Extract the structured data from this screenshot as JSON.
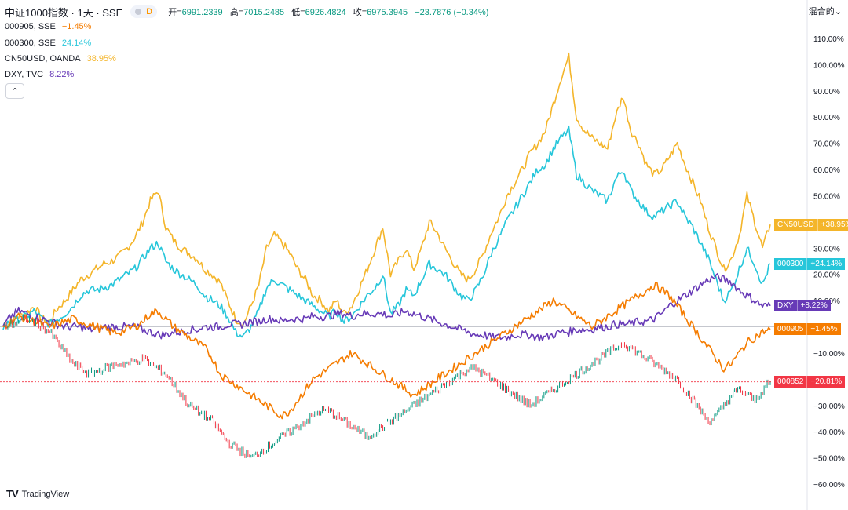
{
  "header": {
    "title": "中证1000指数 · 1天 · SSE",
    "badge": "D",
    "open_label": "开=",
    "open": "6991.2339",
    "high_label": "高=",
    "high": "7015.2485",
    "low_label": "低=",
    "low": "6926.4824",
    "close_label": "收=",
    "close": "6975.3945",
    "change": "−23.7876 (−0.34%)"
  },
  "legend": [
    {
      "symbol": "000905, SSE",
      "value": "−1.45%",
      "color": "#f57c00"
    },
    {
      "symbol": "000300, SSE",
      "value": "24.14%",
      "color": "#26c6da"
    },
    {
      "symbol": "CN50USD, OANDA",
      "value": "38.95%",
      "color": "#f4b52a"
    },
    {
      "symbol": "DXY, TVC",
      "value": "8.22%",
      "color": "#673ab7"
    }
  ],
  "collapse_icon": "chevron-up-icon",
  "scale_mode": "混合的",
  "branding": "TradingView",
  "colors": {
    "main_up": "#089981",
    "main_down": "#f23645",
    "csi500": "#f57c00",
    "csi300": "#26c6da",
    "cn50": "#f4b52a",
    "dxy": "#673ab7"
  },
  "chart_data": {
    "type": "line",
    "y_unit": "%",
    "ylim": [
      -62,
      115
    ],
    "y_ticks": [
      "110.00%",
      "100.00%",
      "90.00%",
      "80.00%",
      "70.00%",
      "60.00%",
      "50.00%",
      "40.00%",
      "30.00%",
      "20.00%",
      "10.00%",
      "0.00%",
      "−10.00%",
      "−30.00%",
      "−40.00%",
      "−50.00%",
      "−60.00%"
    ],
    "y_tick_values": [
      110,
      100,
      90,
      80,
      70,
      60,
      50,
      40,
      30,
      20,
      10,
      0,
      -10,
      -30,
      -40,
      -50,
      -60
    ],
    "x_count": 100,
    "series": [
      {
        "name": "CN50USD",
        "label": "CN50USD",
        "last": "+38.95%",
        "color": "#f4b52a",
        "values": [
          0,
          2,
          4,
          5,
          8,
          3,
          2,
          7,
          10,
          14,
          18,
          20,
          22,
          24,
          25,
          27,
          30,
          34,
          40,
          48,
          52,
          38,
          33,
          30,
          28,
          26,
          22,
          20,
          17,
          10,
          3,
          1,
          8,
          16,
          30,
          35,
          32,
          28,
          22,
          18,
          12,
          10,
          6,
          10,
          5,
          8,
          15,
          22,
          30,
          38,
          20,
          25,
          30,
          22,
          30,
          40,
          36,
          30,
          25,
          20,
          18,
          22,
          28,
          36,
          42,
          50,
          55,
          60,
          66,
          70,
          75,
          85,
          95,
          103,
          80,
          75,
          72,
          70,
          68,
          80,
          88,
          75,
          70,
          62,
          58,
          60,
          65,
          70,
          62,
          55,
          48,
          38,
          30,
          22,
          26,
          35,
          50,
          40,
          30,
          39
        ]
      },
      {
        "name": "000300",
        "label": "000300",
        "last": "+24.14%",
        "color": "#26c6da",
        "values": [
          0,
          2,
          3,
          4,
          6,
          3,
          1,
          3,
          5,
          8,
          12,
          14,
          14,
          15,
          16,
          18,
          20,
          22,
          26,
          30,
          32,
          25,
          22,
          20,
          18,
          16,
          12,
          10,
          8,
          4,
          -2,
          -4,
          0,
          6,
          15,
          18,
          16,
          14,
          12,
          10,
          8,
          6,
          4,
          6,
          2,
          4,
          8,
          12,
          15,
          20,
          5,
          8,
          14,
          12,
          18,
          24,
          22,
          20,
          16,
          12,
          10,
          14,
          20,
          28,
          34,
          40,
          45,
          50,
          55,
          60,
          62,
          68,
          72,
          75,
          58,
          55,
          52,
          50,
          48,
          56,
          60,
          52,
          48,
          44,
          42,
          44,
          46,
          48,
          42,
          38,
          32,
          26,
          18,
          10,
          14,
          22,
          30,
          24,
          16,
          24
        ]
      },
      {
        "name": "DXY",
        "label": "DXY",
        "last": "+8.22%",
        "color": "#673ab7",
        "values": [
          0,
          4,
          6,
          5,
          4,
          3,
          2,
          1,
          0,
          0,
          0,
          -1,
          -1,
          0,
          0,
          0,
          0,
          0,
          -1,
          -2,
          -3,
          -3,
          -2,
          -2,
          -1,
          -1,
          0,
          0,
          0,
          1,
          1,
          1,
          2,
          2,
          3,
          3,
          2,
          3,
          3,
          3,
          4,
          4,
          4,
          5,
          5,
          4,
          5,
          5,
          5,
          5,
          4,
          5,
          6,
          5,
          4,
          3,
          2,
          1,
          0,
          -1,
          -2,
          -3,
          -3,
          -4,
          -4,
          -4,
          -3,
          -3,
          -3,
          -4,
          -4,
          -3,
          -2,
          -2,
          -1,
          -1,
          -1,
          0,
          0,
          1,
          1,
          1,
          2,
          2,
          3,
          5,
          8,
          10,
          12,
          14,
          16,
          18,
          19,
          18,
          17,
          14,
          12,
          10,
          8,
          8
        ]
      },
      {
        "name": "000905",
        "label": "000905",
        "last": "−1.45%",
        "color": "#f57c00",
        "values": [
          0,
          2,
          4,
          3,
          2,
          1,
          0,
          1,
          2,
          3,
          2,
          1,
          0,
          -1,
          -2,
          -2,
          -1,
          0,
          2,
          5,
          6,
          3,
          0,
          -2,
          -4,
          -6,
          -8,
          -12,
          -18,
          -20,
          -22,
          -24,
          -26,
          -28,
          -30,
          -32,
          -34,
          -32,
          -28,
          -24,
          -20,
          -18,
          -16,
          -14,
          -12,
          -10,
          -12,
          -14,
          -16,
          -18,
          -20,
          -22,
          -24,
          -26,
          -24,
          -22,
          -20,
          -18,
          -16,
          -14,
          -12,
          -10,
          -8,
          -6,
          -4,
          -2,
          0,
          2,
          4,
          6,
          8,
          10,
          8,
          6,
          4,
          2,
          0,
          2,
          4,
          6,
          8,
          10,
          12,
          14,
          16,
          14,
          12,
          8,
          4,
          0,
          -4,
          -8,
          -12,
          -16,
          -14,
          -10,
          -6,
          -4,
          -2,
          -1
        ]
      },
      {
        "name": "000852",
        "label": "000852",
        "last": "−20.81%",
        "color": "#f23645",
        "candles": true,
        "values": [
          0,
          1,
          2,
          3,
          2,
          0,
          -2,
          -6,
          -10,
          -14,
          -16,
          -18,
          -17,
          -16,
          -15,
          -14,
          -14,
          -13,
          -12,
          -14,
          -16,
          -18,
          -22,
          -26,
          -30,
          -32,
          -34,
          -36,
          -40,
          -44,
          -46,
          -48,
          -50,
          -48,
          -46,
          -44,
          -42,
          -40,
          -38,
          -36,
          -34,
          -32,
          -32,
          -34,
          -36,
          -38,
          -40,
          -42,
          -40,
          -38,
          -36,
          -34,
          -32,
          -30,
          -28,
          -26,
          -24,
          -22,
          -20,
          -18,
          -16,
          -16,
          -18,
          -20,
          -22,
          -24,
          -26,
          -28,
          -30,
          -28,
          -26,
          -24,
          -22,
          -20,
          -18,
          -16,
          -14,
          -12,
          -10,
          -8,
          -6,
          -8,
          -10,
          -12,
          -14,
          -16,
          -18,
          -20,
          -24,
          -28,
          -32,
          -36,
          -34,
          -30,
          -26,
          -24,
          -26,
          -28,
          -24,
          -21
        ]
      }
    ]
  }
}
